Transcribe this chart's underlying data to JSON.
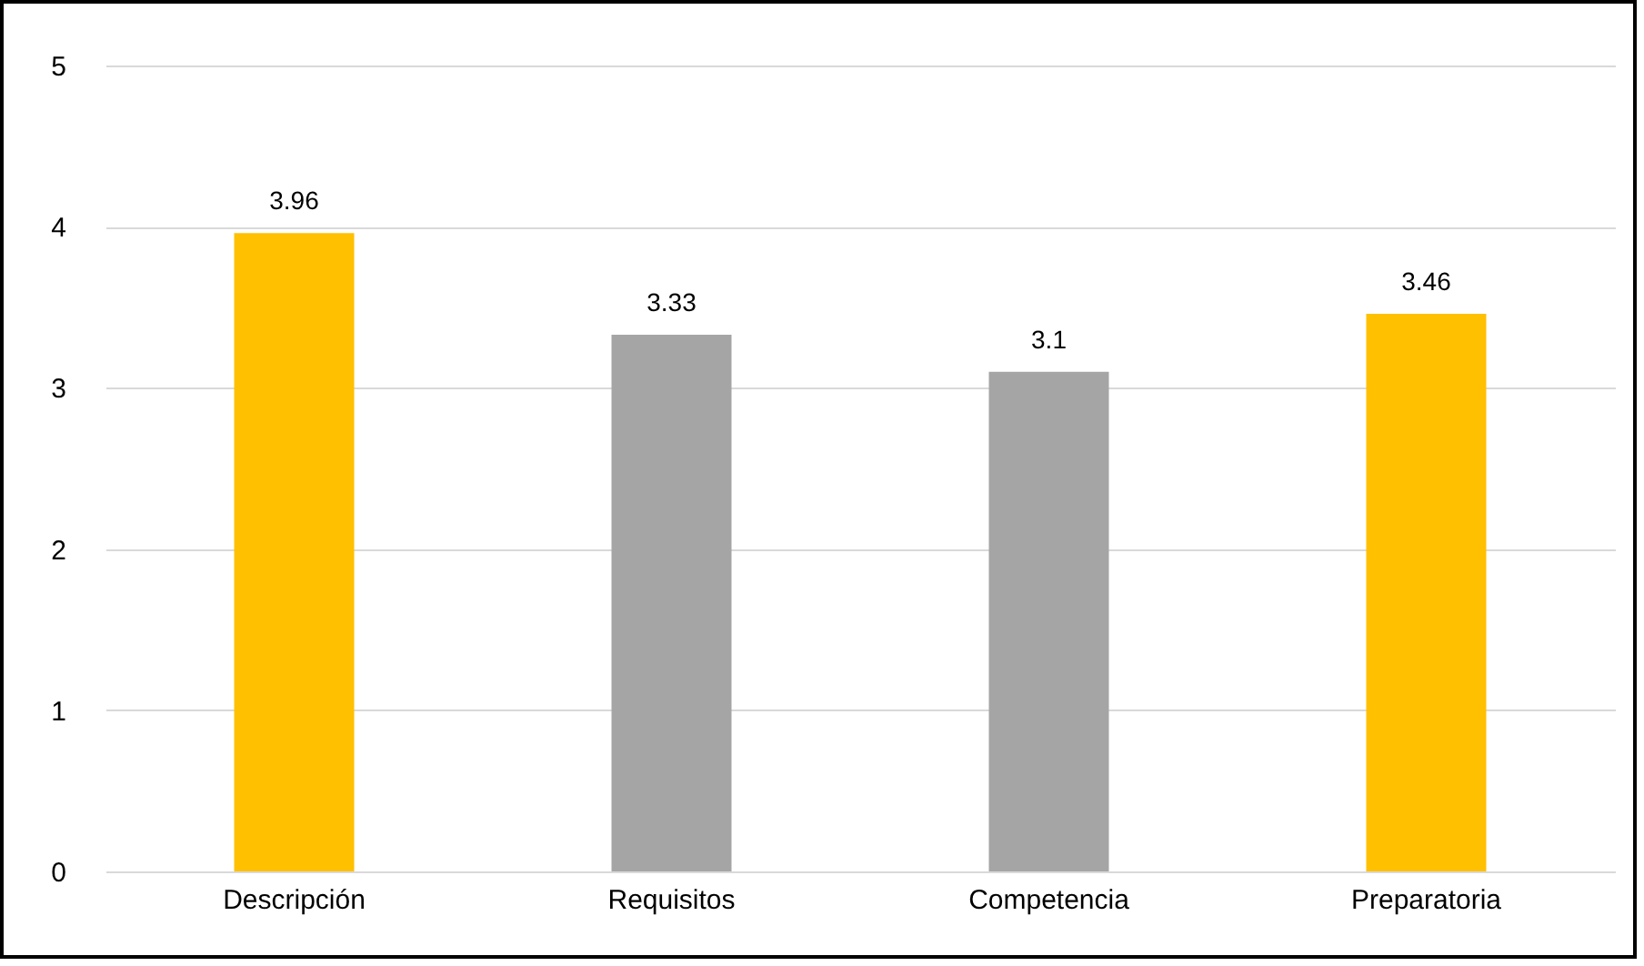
{
  "chart_data": {
    "type": "bar",
    "categories": [
      "Descripción",
      "Requisitos",
      "Competencia",
      "Preparatoria"
    ],
    "values": [
      3.96,
      3.33,
      3.1,
      3.46
    ],
    "colors": [
      "#ffc000",
      "#a5a5a5",
      "#a5a5a5",
      "#ffc000"
    ],
    "ylim": [
      0,
      5
    ],
    "yticks": [
      0,
      1,
      2,
      3,
      4,
      5
    ],
    "grid": "y",
    "data_labels": true
  }
}
